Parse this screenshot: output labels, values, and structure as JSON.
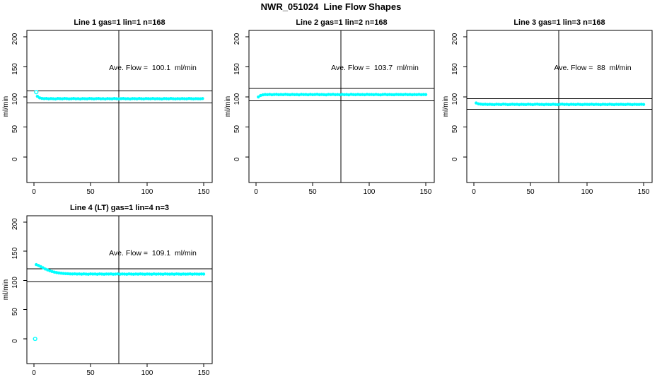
{
  "page": {
    "title": "NWR_051024  Line Flow Shapes",
    "background_color": "#ffffff",
    "axis_color": "#000000"
  },
  "chart_data": [
    {
      "type": "scatter",
      "title": "Line 1 gas=1 lin=1 n=168",
      "annotation": "Ave. Flow =  100.1  ml/min",
      "ave_flow_ml_min": 100.1,
      "gas": 1,
      "lin": 1,
      "n": 168,
      "xlabel": "",
      "ylabel": "ml/min",
      "xticks": [
        0,
        50,
        100,
        150
      ],
      "yticks": [
        0,
        50,
        100,
        150,
        200
      ],
      "xlim": [
        -6.3,
        157.5
      ],
      "ylim": [
        -42.3,
        210.6
      ],
      "grid": false,
      "vline_x": 75,
      "hlines": [
        110.1,
        90.1
      ],
      "marker_color": "#00FFFF",
      "points_x_start": 3,
      "points_x_step": 2,
      "points_y": [
        101,
        98.5,
        97.6,
        97.2,
        97.5,
        96.8,
        97.3,
        97.0,
        96.6,
        97.4,
        97.1,
        96.8,
        97.5,
        97.2,
        96.7,
        97.0,
        97.4,
        96.9,
        97.2,
        96.6,
        97.3,
        97.0,
        96.8,
        97.4,
        97.1,
        96.7,
        97.2,
        97.5,
        96.9,
        97.1,
        96.6,
        97.3,
        97.0,
        96.8,
        97.4,
        97.0,
        96.7,
        97.2,
        97.5,
        96.9,
        97.2,
        96.6,
        97.3,
        97.1,
        96.8,
        97.4,
        97.0,
        96.7,
        97.3,
        97.1,
        96.9,
        97.4,
        96.8,
        97.2,
        97.0,
        96.6,
        97.3,
        97.1,
        96.8,
        97.4,
        97.0,
        96.7,
        97.2,
        96.9,
        97.3,
        97.0,
        96.8,
        97.4,
        97.1,
        96.7,
        97.2,
        97.0,
        96.9,
        97.3
      ],
      "open_points": [
        [
          2,
          108
        ]
      ]
    },
    {
      "type": "scatter",
      "title": "Line 2 gas=1 lin=2 n=168",
      "annotation": "Ave. Flow =  103.7  ml/min",
      "ave_flow_ml_min": 103.7,
      "gas": 1,
      "lin": 2,
      "n": 168,
      "xlabel": "",
      "ylabel": "ml/min",
      "xticks": [
        0,
        50,
        100,
        150
      ],
      "yticks": [
        0,
        50,
        100,
        150,
        200
      ],
      "xlim": [
        -6.3,
        157.5
      ],
      "ylim": [
        -42.3,
        210.6
      ],
      "grid": false,
      "vline_x": 75,
      "hlines": [
        114.1,
        93.3
      ],
      "marker_color": "#00FFFF",
      "points_x_start": 2,
      "points_x_step": 2,
      "points_y": [
        100,
        102.5,
        103.5,
        104,
        103.8,
        104.2,
        103.6,
        104.0,
        104.3,
        103.7,
        104.1,
        103.8,
        104.4,
        103.9,
        103.6,
        104.2,
        103.8,
        104.0,
        103.5,
        104.3,
        103.9,
        104.1,
        103.6,
        104.2,
        103.8,
        104.0,
        104.4,
        103.7,
        104.1,
        103.8,
        103.5,
        104.2,
        103.9,
        104.3,
        103.7,
        104.0,
        103.6,
        104.2,
        103.8,
        104.1,
        103.5,
        104.3,
        103.9,
        103.7,
        104.2,
        103.8,
        104.0,
        103.6,
        104.3,
        103.9,
        104.1,
        103.7,
        104.2,
        103.8,
        103.5,
        104.0,
        104.3,
        103.7,
        104.1,
        103.8,
        103.6,
        104.2,
        103.9,
        104.0,
        103.7,
        104.3,
        103.8,
        104.1,
        103.6,
        104.0,
        103.8,
        104.2,
        103.7,
        104.0,
        103.9
      ],
      "open_points": []
    },
    {
      "type": "scatter",
      "title": "Line 3 gas=1 lin=3 n=168",
      "annotation": "Ave. Flow =  88  ml/min",
      "ave_flow_ml_min": 88,
      "gas": 1,
      "lin": 3,
      "n": 168,
      "xlabel": "",
      "ylabel": "ml/min",
      "xticks": [
        0,
        50,
        100,
        150
      ],
      "yticks": [
        0,
        50,
        100,
        150,
        200
      ],
      "xlim": [
        -6.3,
        157.5
      ],
      "ylim": [
        -42.3,
        210.6
      ],
      "grid": false,
      "vline_x": 75,
      "hlines": [
        96.8,
        79.2
      ],
      "marker_color": "#00FFFF",
      "points_x_start": 2,
      "points_x_step": 2,
      "points_y": [
        90,
        88.5,
        88.0,
        87.6,
        87.9,
        87.4,
        87.8,
        87.5,
        87.2,
        87.9,
        87.6,
        87.3,
        88.0,
        87.7,
        87.2,
        87.5,
        87.9,
        87.4,
        87.7,
        87.1,
        87.8,
        87.5,
        87.3,
        87.9,
        87.6,
        87.2,
        87.7,
        88.0,
        87.4,
        87.6,
        87.1,
        87.8,
        87.5,
        87.3,
        87.9,
        87.5,
        87.2,
        87.7,
        88.0,
        87.4,
        87.7,
        87.1,
        87.8,
        87.6,
        87.3,
        87.9,
        87.5,
        87.2,
        87.8,
        87.6,
        87.4,
        87.9,
        87.3,
        87.7,
        87.5,
        87.1,
        87.8,
        87.6,
        87.3,
        87.9,
        87.5,
        87.2,
        87.7,
        87.4,
        87.8,
        87.5,
        87.3,
        87.9,
        87.6,
        87.2,
        87.7,
        87.5,
        87.4,
        87.8,
        87.5
      ],
      "open_points": []
    },
    {
      "type": "scatter",
      "title": "Line 4 (LT) gas=1 lin=4 n=3",
      "annotation": "Ave. Flow =  109.1  ml/min",
      "ave_flow_ml_min": 109.1,
      "gas": 1,
      "lin": 4,
      "n": 3,
      "xlabel": "",
      "ylabel": "ml/min",
      "xticks": [
        0,
        50,
        100,
        150
      ],
      "yticks": [
        0,
        50,
        100,
        150,
        200
      ],
      "xlim": [
        -6.3,
        157.5
      ],
      "ylim": [
        -42.3,
        210.6
      ],
      "grid": false,
      "vline_x": 75,
      "hlines": [
        120.0,
        98.2
      ],
      "marker_color": "#00FFFF",
      "points_x_start": 2,
      "points_x_step": 2,
      "points_y": [
        127,
        125.5,
        123.5,
        121.5,
        119.5,
        118,
        116.5,
        115.2,
        114.2,
        113.4,
        112.8,
        112.3,
        111.9,
        111.6,
        111.4,
        111.2,
        111.0,
        111.3,
        110.8,
        111.1,
        110.7,
        111.2,
        110.9,
        110.6,
        111.1,
        110.8,
        111.0,
        110.6,
        111.2,
        110.9,
        110.5,
        111.0,
        110.8,
        111.1,
        110.6,
        110.9,
        111.2,
        110.7,
        111.0,
        110.8,
        110.5,
        111.1,
        110.9,
        110.6,
        111.0,
        110.7,
        111.2,
        110.8,
        110.5,
        111.0,
        110.9,
        110.6,
        111.1,
        110.7,
        111.0,
        110.8,
        110.5,
        111.1,
        110.9,
        110.7,
        111.0,
        110.6,
        111.2,
        110.8,
        110.5,
        111.0,
        110.7,
        110.9,
        111.1,
        110.6,
        111.0,
        110.8,
        110.7,
        111.0,
        110.8
      ],
      "open_points": [
        [
          1,
          0
        ]
      ]
    }
  ]
}
